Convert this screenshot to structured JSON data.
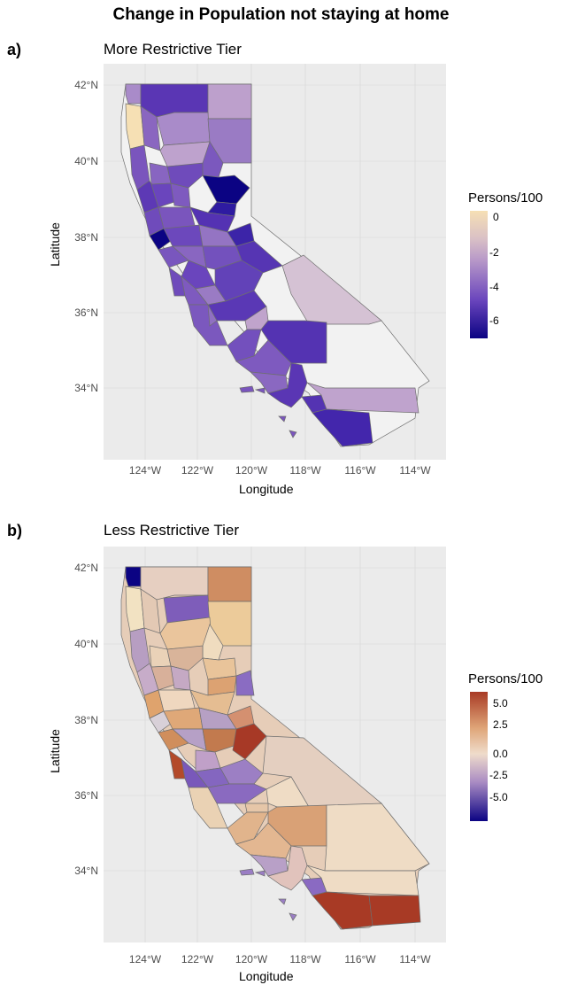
{
  "title": "Change in Population not staying at home",
  "panels": [
    {
      "letter": "a)",
      "subtitle": "More Restrictive Tier",
      "xlabel": "Longitude",
      "ylabel": "Latitude",
      "yticks": [
        "42°N",
        "40°N",
        "38°N",
        "36°N",
        "34°N"
      ],
      "xticks": [
        "124°W",
        "122°W",
        "120°W",
        "118°W",
        "116°W",
        "114°W"
      ],
      "legend": {
        "title": "Persons/100",
        "labels": [
          "0",
          "-2",
          "-4",
          "-6"
        ],
        "colors": [
          "#f6e0b4",
          "#b99ac8",
          "#6a45bd",
          "#0b0383"
        ]
      },
      "missing_color": "#f2f2f2"
    },
    {
      "letter": "b)",
      "subtitle": "Less Restrictive Tier",
      "xlabel": "Longitude",
      "ylabel": "Latitude",
      "yticks": [
        "42°N",
        "40°N",
        "38°N",
        "36°N",
        "34°N"
      ],
      "xticks": [
        "124°W",
        "122°W",
        "120°W",
        "118°W",
        "116°W",
        "114°W"
      ],
      "legend": {
        "title": "Persons/100",
        "labels": [
          "5.0",
          "2.5",
          "0.0",
          "-2.5",
          "-5.0"
        ],
        "colors": [
          "#a83a25",
          "#dfa578",
          "#efdccb",
          "#a98bc3",
          "#0b0383"
        ]
      }
    }
  ]
}
